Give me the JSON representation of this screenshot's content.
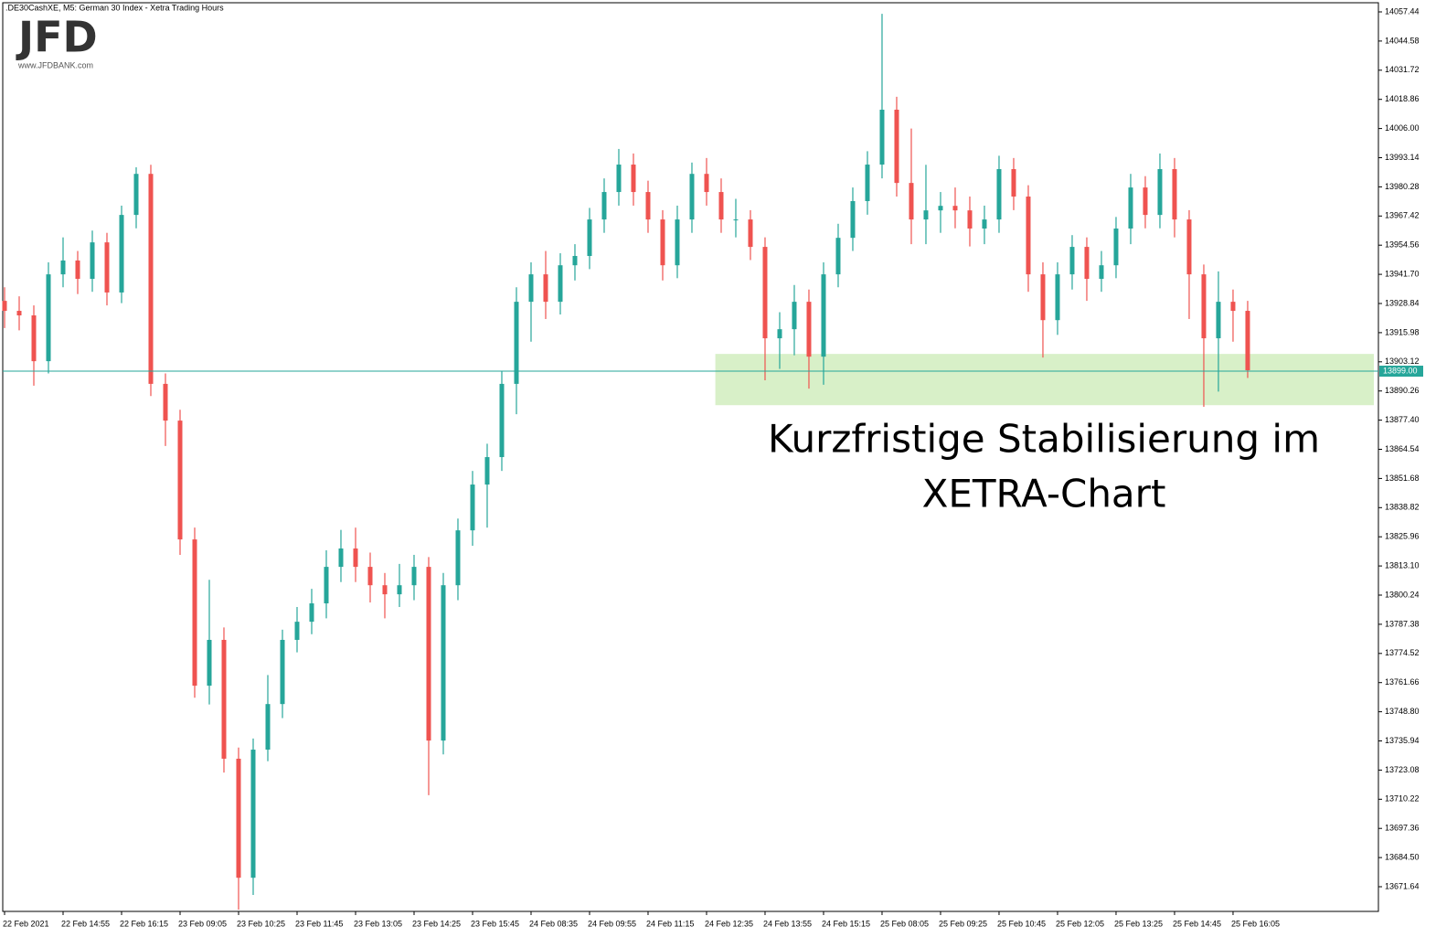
{
  "chart_data": {
    "type": "candlestick",
    "header": ".DE30CashXE, M5:  German 30 Index  - Xetra Trading Hours",
    "logo": "JFD",
    "logo_url": "www.JFDBANK.com",
    "annotation": [
      "Kurzfristige Stabilisierung im",
      "XETRA-Chart"
    ],
    "up_color": "#26a69a",
    "down_color": "#ef5350",
    "xlim": [
      -0.125,
      93.94
    ],
    "xticks": [
      {
        "value": 0,
        "label": "22 Feb 2021"
      },
      {
        "value": 4,
        "label": "22 Feb 14:55"
      },
      {
        "value": 8,
        "label": "22 Feb 16:15"
      },
      {
        "value": 12,
        "label": "23 Feb 09:05"
      },
      {
        "value": 16,
        "label": "23 Feb 10:25"
      },
      {
        "value": 20,
        "label": "23 Feb 11:45"
      },
      {
        "value": 24,
        "label": "23 Feb 13:05"
      },
      {
        "value": 28,
        "label": "23 Feb 14:25"
      },
      {
        "value": 32,
        "label": "23 Feb 15:45"
      },
      {
        "value": 36,
        "label": "24 Feb 08:35"
      },
      {
        "value": 40,
        "label": "24 Feb 09:55"
      },
      {
        "value": 44,
        "label": "24 Feb 11:15"
      },
      {
        "value": 48,
        "label": "24 Feb 12:35"
      },
      {
        "value": 52,
        "label": "24 Feb 13:55"
      },
      {
        "value": 56,
        "label": "24 Feb 15:15"
      },
      {
        "value": 60,
        "label": "25 Feb 08:05"
      },
      {
        "value": 64,
        "label": "25 Feb 09:25"
      },
      {
        "value": 68,
        "label": "25 Feb 10:45"
      },
      {
        "value": 72,
        "label": "25 Feb 12:05"
      },
      {
        "value": 76,
        "label": "25 Feb 13:25"
      },
      {
        "value": 80,
        "label": "25 Feb 14:45"
      },
      {
        "value": 84,
        "label": "25 Feb 16:05"
      }
    ],
    "ylim": [
      13660.76,
      14061.47
    ],
    "yticks": [
      13671.64,
      {
        "value": 13684.5,
        "label": "13684.50"
      },
      13697.36,
      13710.22,
      13723.08,
      13735.94,
      {
        "value": 13748.8,
        "label": "13748.80"
      },
      13761.66,
      13774.52,
      13787.38,
      13800.24,
      {
        "value": 13813.1,
        "label": "13813.10"
      },
      13825.96,
      13838.82,
      13851.68,
      13864.54,
      {
        "value": 13877.4,
        "label": "13877.40"
      },
      13890.26,
      13903.12,
      13915.98,
      13928.84,
      {
        "value": 13941.7,
        "label": "13941.70"
      },
      13954.56,
      13967.42,
      13980.28,
      13993.14,
      {
        "value": 14006,
        "label": "14006.00"
      },
      14018.86,
      14031.72,
      14044.58,
      14057.44
    ],
    "last_price": {
      "value": 13899,
      "label": "13899.00"
    },
    "zone": {
      "ylim": [
        13884.0,
        13906.6
      ],
      "x_start": 48.6,
      "color": "#d8f0c8"
    },
    "open": [
      13930.0,
      13925.6,
      13923.6,
      13903.4,
      13941.7,
      13947.8,
      13939.7,
      13955.8,
      13933.7,
      13967.9,
      13986.0,
      13893.4,
      13877.2,
      13824.8,
      13760.3,
      13780.5,
      13728.1,
      13675.6,
      13732.1,
      13752.2,
      13780.5,
      13788.5,
      13796.6,
      13812.7,
      13820.8,
      13812.7,
      13804.6,
      13800.6,
      13804.6,
      13812.7,
      13736.1,
      13804.6,
      13828.8,
      13849.0,
      13861.1,
      13893.4,
      13929.6,
      13941.7,
      13929.6,
      13945.7,
      13949.8,
      13965.9,
      13978.0,
      13990.1,
      13978.0,
      13965.9,
      13945.7,
      13965.9,
      13986.0,
      13978.0,
      13965.9,
      13965.9,
      13953.8,
      13913.5,
      13917.5,
      13929.6,
      13905.4,
      13941.7,
      13957.8,
      13974.0,
      13990.1,
      14014.3,
      13982.0,
      13965.9,
      13969.9,
      13971.9,
      13969.9,
      13961.9,
      13965.9,
      13988.1,
      13976.0,
      13941.7,
      13921.5,
      13941.7,
      13953.8,
      13939.7,
      13945.7,
      13961.9,
      13980.0,
      13967.9,
      13988.1,
      13965.9,
      13941.7,
      13913.5,
      13929.6,
      13925.6
    ],
    "high": [
      13936,
      13932,
      13928,
      13947,
      13958,
      13952,
      13961,
      13960,
      13972,
      13988.9,
      13990,
      13898,
      13882,
      13830,
      13807,
      13786,
      13733,
      13737,
      13765,
      13785,
      13795,
      13803,
      13820,
      13829,
      13830,
      13819,
      13810,
      13814,
      13818,
      13817,
      13810,
      13834,
      13855,
      13867,
      13899,
      13936,
      13947,
      13952,
      13951,
      13955,
      13971,
      13984,
      13997,
      13995,
      13983,
      13970,
      13972,
      13991,
      13993,
      13984,
      13975,
      13970,
      13958,
      13925,
      13937,
      13935,
      13947,
      13964,
      13980,
      13996,
      14056.6,
      14020,
      14006,
      13990,
      13978,
      13980,
      13976,
      13972,
      13994,
      13993,
      13981,
      13947,
      13947,
      13959,
      13958,
      13952,
      13967,
      13986,
      13985,
      13995,
      13993,
      13970,
      13946,
      13943,
      13935,
      13930
    ],
    "low": [
      13918,
      13917,
      13892.6,
      13898,
      13936,
      13933,
      13934,
      13928,
      13929,
      13962,
      13888,
      13866,
      13818,
      13755,
      13752,
      13722,
      13661.5,
      13668,
      13727,
      13746,
      13775,
      13783,
      13790,
      13806,
      13806,
      13797,
      13790,
      13795,
      13798,
      13712,
      13730,
      13798,
      13822,
      13830,
      13855,
      13880,
      13912,
      13922,
      13924,
      13939,
      13944,
      13960,
      13972,
      13972,
      13960,
      13939,
      13940,
      13960,
      13972,
      13960,
      13958,
      13948,
      13895,
      13900,
      13906,
      13891.3,
      13893,
      13936,
      13952,
      13968,
      13984,
      13976,
      13955,
      13955,
      13960,
      13962,
      13954,
      13955,
      13960,
      13970,
      13934,
      13905,
      13915,
      13935,
      13930,
      13934,
      13940,
      13955,
      13962,
      13962,
      13958,
      13922,
      13883.3,
      13890,
      13912,
      13896
    ],
    "close": [
      13925.6,
      13923.6,
      13903.4,
      13941.7,
      13947.8,
      13939.7,
      13955.8,
      13933.7,
      13967.9,
      13986.0,
      13893.4,
      13877.2,
      13824.8,
      13760.3,
      13780.5,
      13728.1,
      13675.6,
      13732.1,
      13752.2,
      13780.5,
      13788.5,
      13796.6,
      13812.7,
      13820.8,
      13812.7,
      13804.6,
      13800.6,
      13804.6,
      13812.7,
      13736.1,
      13804.6,
      13828.8,
      13849.0,
      13861.1,
      13893.4,
      13929.6,
      13941.7,
      13929.6,
      13945.7,
      13949.8,
      13965.9,
      13978.0,
      13990.1,
      13978.0,
      13965.9,
      13945.7,
      13965.9,
      13986.0,
      13978.0,
      13965.9,
      13965.9,
      13953.8,
      13913.5,
      13917.5,
      13929.6,
      13905.4,
      13941.7,
      13957.8,
      13974.0,
      13990.1,
      14014.3,
      13982.0,
      13965.9,
      13969.9,
      13971.9,
      13969.9,
      13961.9,
      13965.9,
      13988.1,
      13976.0,
      13941.7,
      13921.5,
      13941.7,
      13953.8,
      13939.7,
      13945.7,
      13961.9,
      13980.0,
      13967.9,
      13988.1,
      13965.9,
      13941.7,
      13913.5,
      13929.6,
      13925.6,
      13899.4
    ]
  }
}
